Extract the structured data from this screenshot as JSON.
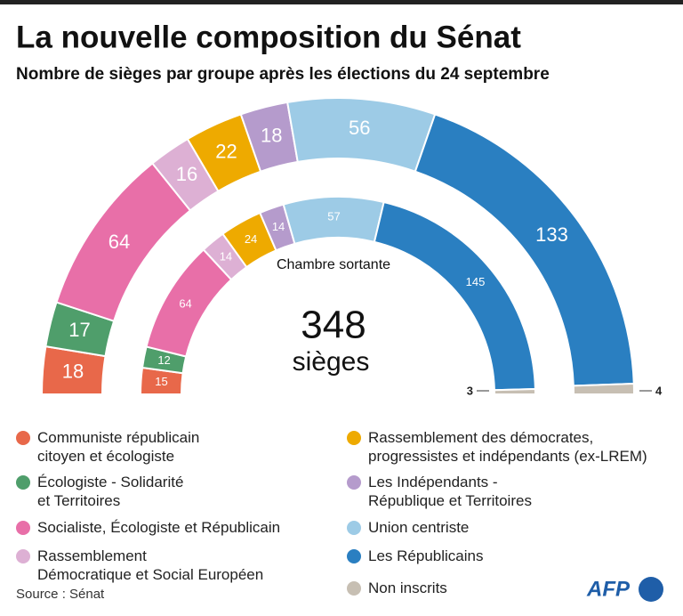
{
  "chart_data": {
    "type": "parliament",
    "title": "La nouvelle composition du Sénat",
    "subtitle": "Nombre de sièges par groupe après les élections du 24 septembre",
    "inner_ring_label": "Chambre sortante",
    "total_seats": 348,
    "total_label": "sièges",
    "series": [
      {
        "name": "Communiste républicain\ncitoyen et écologiste",
        "color": "#e8684a",
        "values": [
          18,
          15
        ]
      },
      {
        "name": "Écologiste - Solidarité\net Territoires",
        "color": "#4f9e6b",
        "values": [
          17,
          12
        ]
      },
      {
        "name": "Socialiste, Écologiste et Républicain",
        "color": "#e86fa8",
        "values": [
          64,
          64
        ]
      },
      {
        "name": "Rassemblement\nDémocratique et Social Européen",
        "color": "#ddb0d4",
        "values": [
          16,
          14
        ]
      },
      {
        "name": "Rassemblement des démocrates,\nprogressistes et indépendants (ex-LREM)",
        "color": "#eeaa00",
        "values": [
          22,
          24
        ]
      },
      {
        "name": "Les Indépendants -\nRépublique et Territoires",
        "color": "#b59bcc",
        "values": [
          18,
          14
        ]
      },
      {
        "name": "Union centriste",
        "color": "#9dcbe6",
        "values": [
          56,
          57
        ]
      },
      {
        "name": "Les Républicains",
        "color": "#2a7fc1",
        "values": [
          133,
          145
        ]
      },
      {
        "name": "Non inscrits",
        "color": "#c7bfb3",
        "values": [
          4,
          3
        ]
      }
    ],
    "source": "Source : Sénat",
    "logo": "AFP"
  }
}
